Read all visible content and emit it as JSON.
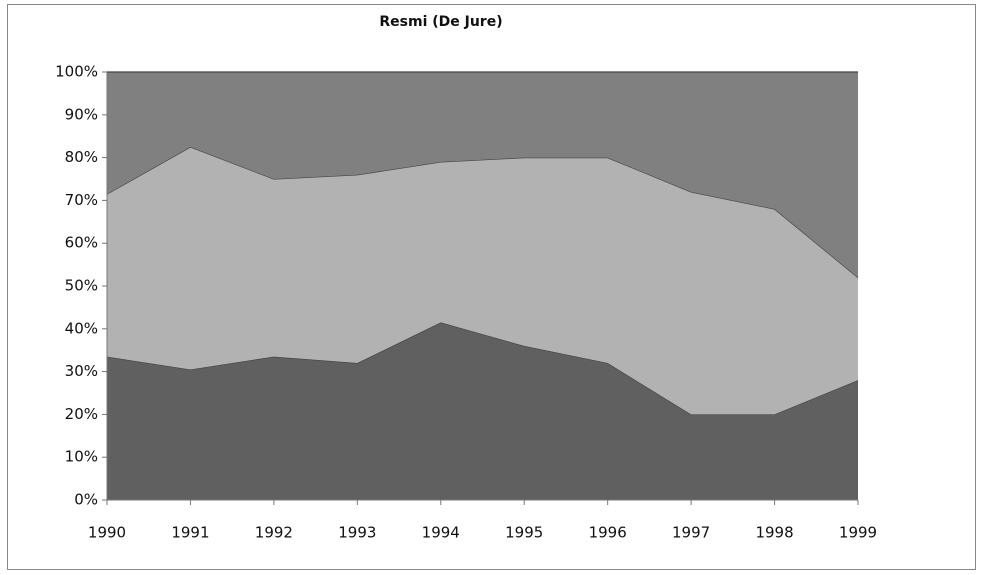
{
  "chart_data": {
    "type": "stacked_area",
    "title": "Resmi (De Jure)",
    "categories": [
      "1990",
      "1991",
      "1992",
      "1993",
      "1994",
      "1995",
      "1996",
      "1997",
      "1998",
      "1999"
    ],
    "series": [
      {
        "color": "#606060",
        "values": [
          33.5,
          30.5,
          33.5,
          32,
          41.5,
          36,
          32,
          20,
          20,
          28
        ]
      },
      {
        "color": "#b2b2b2",
        "values": [
          38,
          52,
          41.5,
          44,
          37.5,
          44,
          48,
          52,
          48,
          24
        ]
      },
      {
        "color": "#808080",
        "values": [
          28.5,
          17.5,
          25,
          24,
          21,
          20,
          20,
          28,
          32,
          48
        ]
      }
    ],
    "ylim": [
      0,
      100
    ],
    "yticks": [
      {
        "value": 0,
        "label": "0%"
      },
      {
        "value": 10,
        "label": "10%"
      },
      {
        "value": 20,
        "label": "20%"
      },
      {
        "value": 30,
        "label": "30%"
      },
      {
        "value": 40,
        "label": "40%"
      },
      {
        "value": 50,
        "label": "50%"
      },
      {
        "value": 60,
        "label": "60%"
      },
      {
        "value": 70,
        "label": "70%"
      },
      {
        "value": 80,
        "label": "80%"
      },
      {
        "value": 90,
        "label": "90%"
      },
      {
        "value": 100,
        "label": "100%"
      }
    ]
  }
}
